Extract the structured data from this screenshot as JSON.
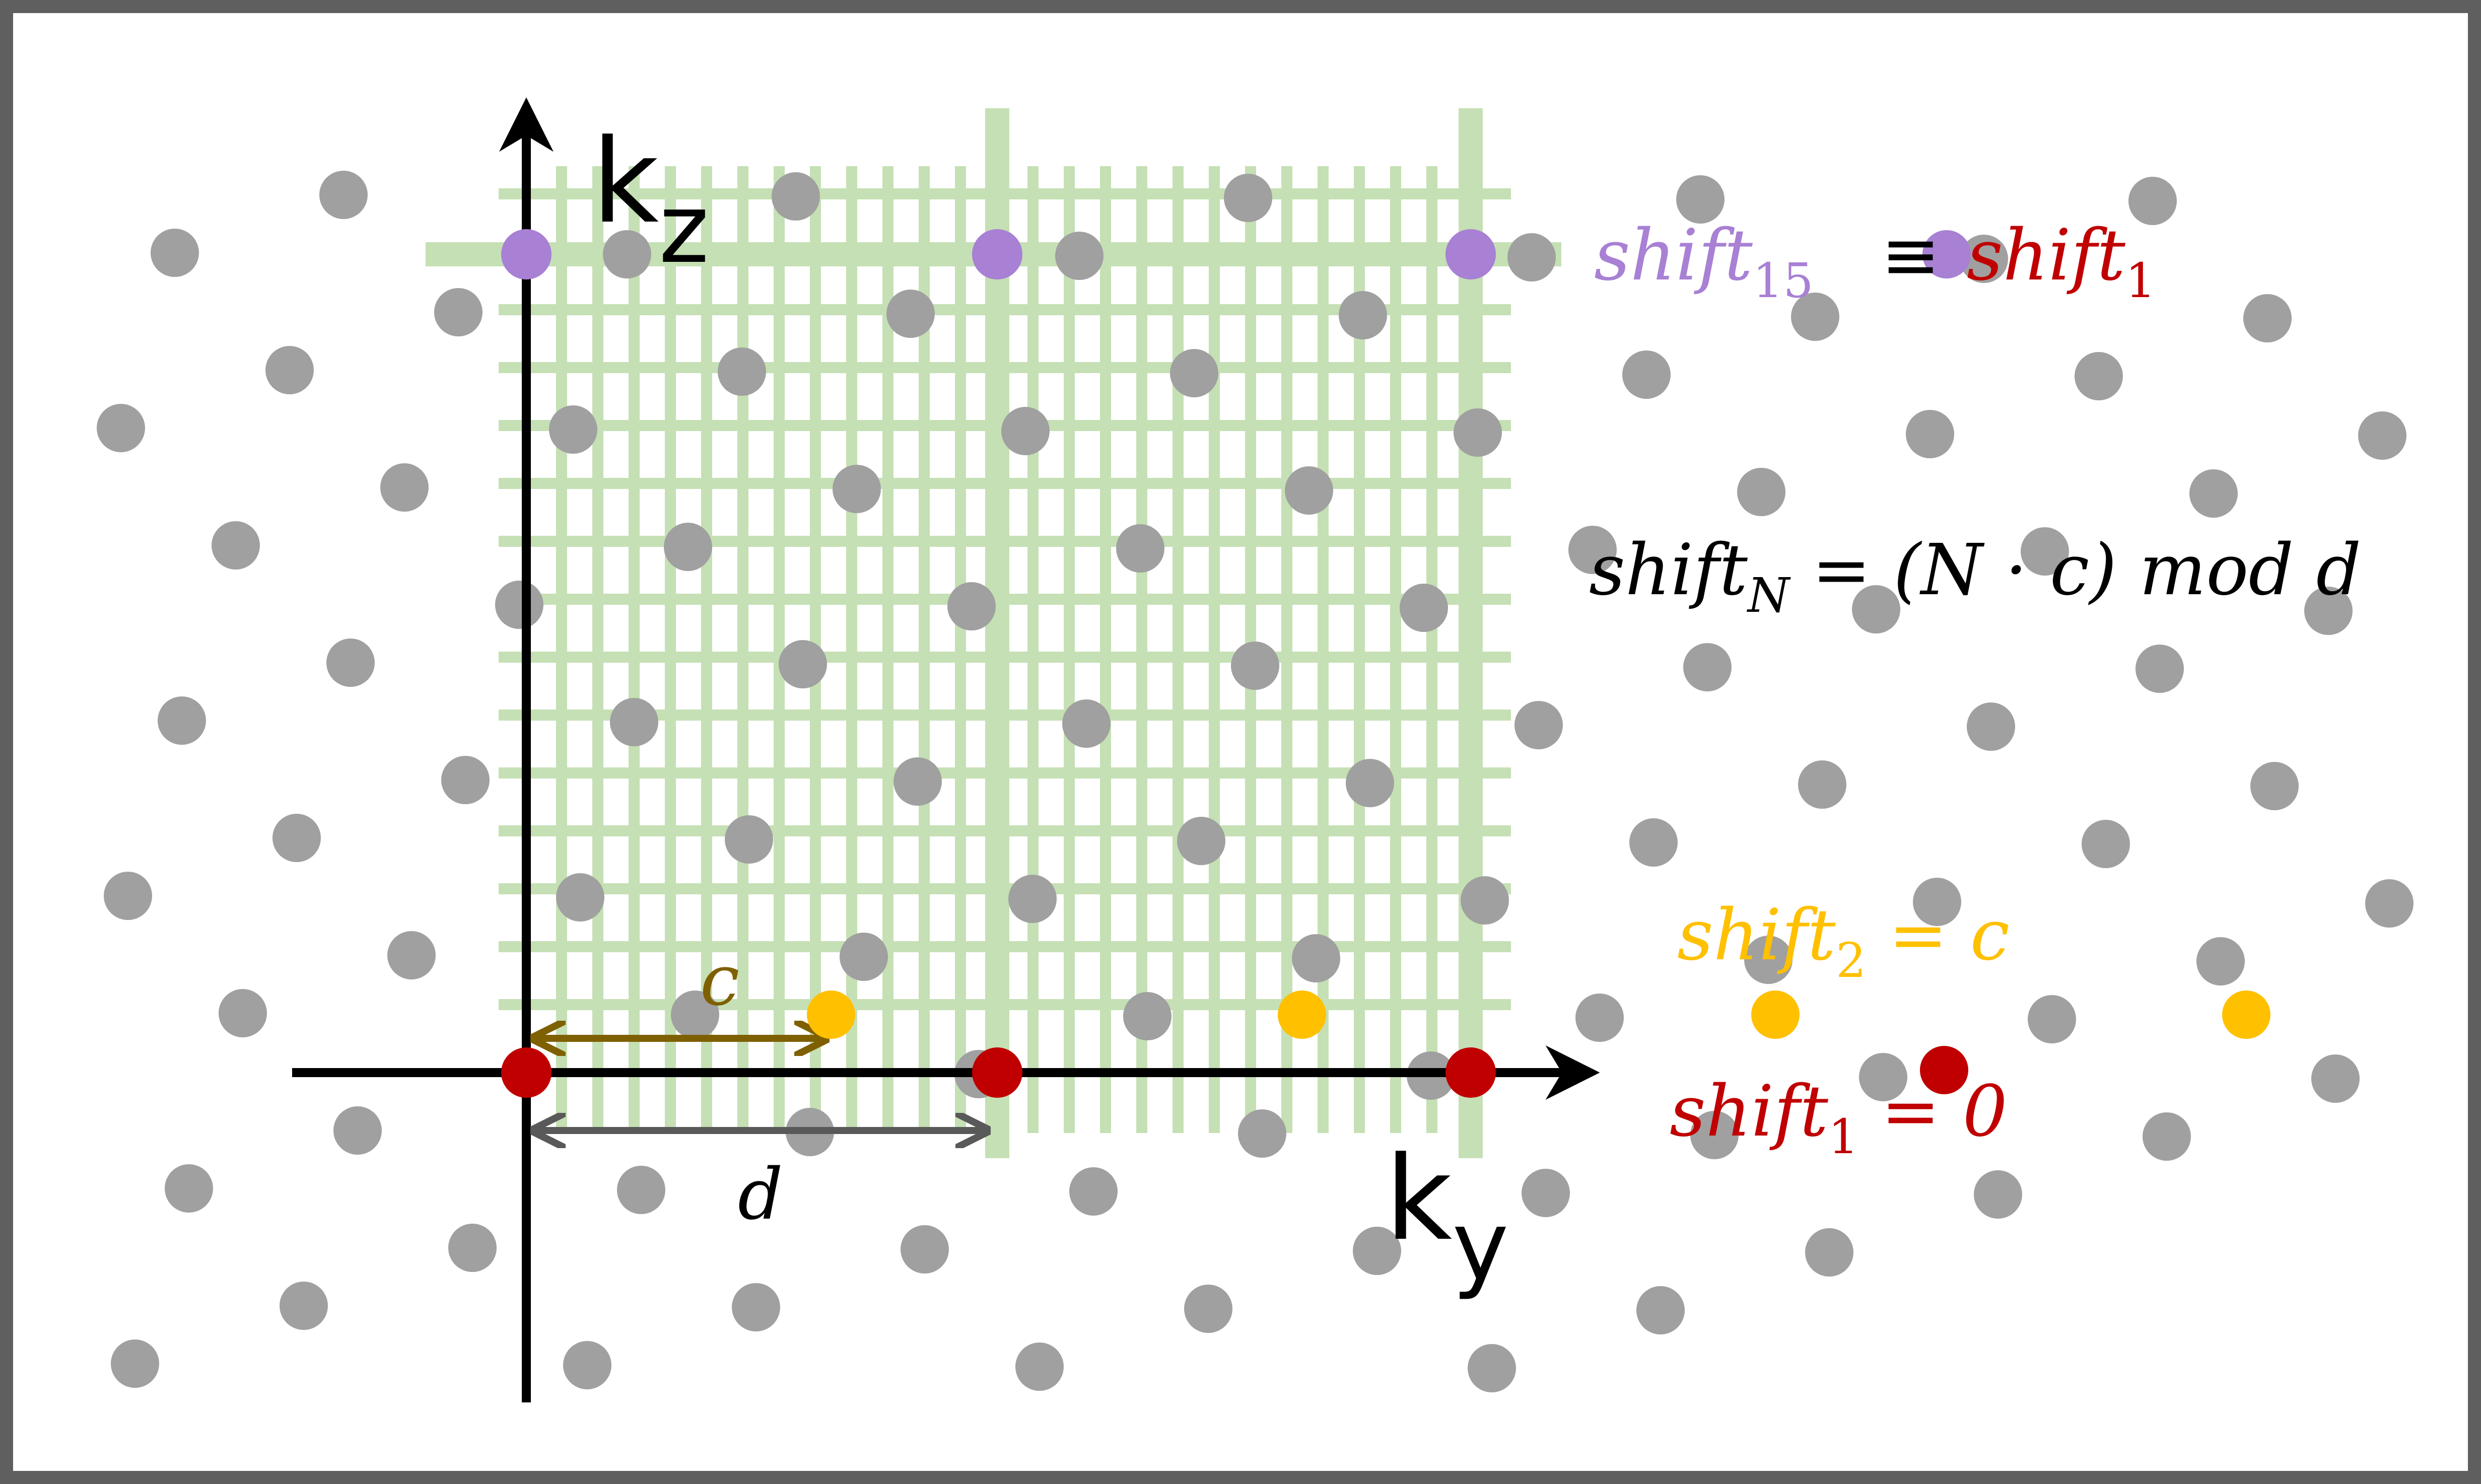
{
  "axes": {
    "ky_label": "k",
    "ky_sub": "y",
    "kz_label": "k",
    "kz_sub": "z"
  },
  "dimensions": {
    "c_label": "c",
    "d_label": "d"
  },
  "annotations": {
    "shift15": {
      "main": "shift",
      "sub": "15",
      "color": "#a880d4"
    },
    "equiv_symbol": "≡",
    "shift1_top": {
      "main": "shift",
      "sub": "1",
      "color": "#c00000"
    },
    "formula": {
      "lhs": "shift",
      "sub": "N",
      "rhs": " = (N · c) mod d",
      "color": "#000000"
    },
    "shift2": {
      "main": "shift",
      "sub": "2",
      "rhs": " = c",
      "color": "#ffc000"
    },
    "shift1_bottom": {
      "main": "shift",
      "sub": "1",
      "rhs": " = 0",
      "color": "#c00000"
    }
  },
  "colors": {
    "frame": "#5f5f5f",
    "grid": "#c5e0b4",
    "background_point": "#a0a0a0",
    "axis": "#000000",
    "c_arrow": "#7f6000",
    "d_arrow": "#595959",
    "shift1_point": "#c00000",
    "shift2_point": "#ffc000",
    "shift15_point": "#a880d4"
  }
}
